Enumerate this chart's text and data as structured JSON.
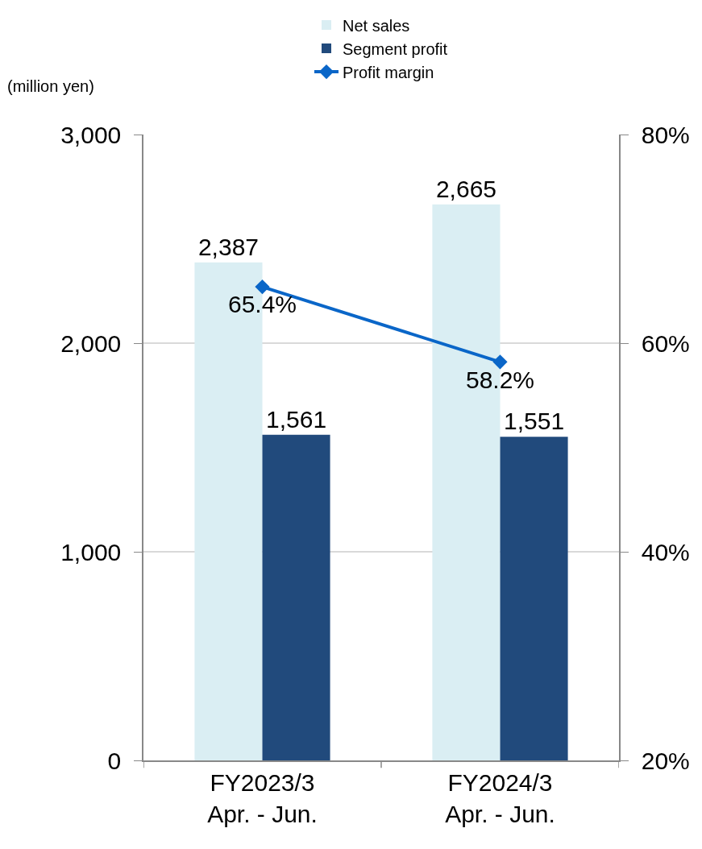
{
  "chart_data": {
    "type": "bar",
    "categories": [
      "FY2023/3\nApr. - Jun.",
      "FY2024/3\nApr. - Jun."
    ],
    "series": [
      {
        "name": "Net sales",
        "color": "#daeef3",
        "values": [
          2387,
          2665
        ],
        "value_labels": [
          "2,387",
          "2,665"
        ]
      },
      {
        "name": "Segment profit",
        "color": "#214a7c",
        "values": [
          1561,
          1551
        ],
        "value_labels": [
          "1,561",
          "1,551"
        ]
      },
      {
        "name": "Profit margin",
        "type": "line",
        "axis": "y2",
        "color": "#0a66c8",
        "marker": "diamond",
        "values": [
          65.4,
          58.2
        ],
        "value_labels": [
          "65.4%",
          "58.2%"
        ]
      }
    ],
    "annotations": [
      "(million yen)"
    ],
    "ylim": [
      0,
      3000
    ],
    "yticks": [
      0,
      {
        "value": 1000,
        "label": "1,000"
      },
      {
        "value": 2000,
        "label": "2,000"
      },
      {
        "value": 3000,
        "label": "3,000"
      }
    ],
    "y2lim": [
      20,
      80
    ],
    "y2ticks": [
      {
        "value": 20,
        "label": "20%"
      },
      {
        "value": 40,
        "label": "40%"
      },
      {
        "value": 60,
        "label": "60%"
      },
      {
        "value": 80,
        "label": "80%"
      }
    ],
    "grid": "y",
    "legend": "top"
  }
}
